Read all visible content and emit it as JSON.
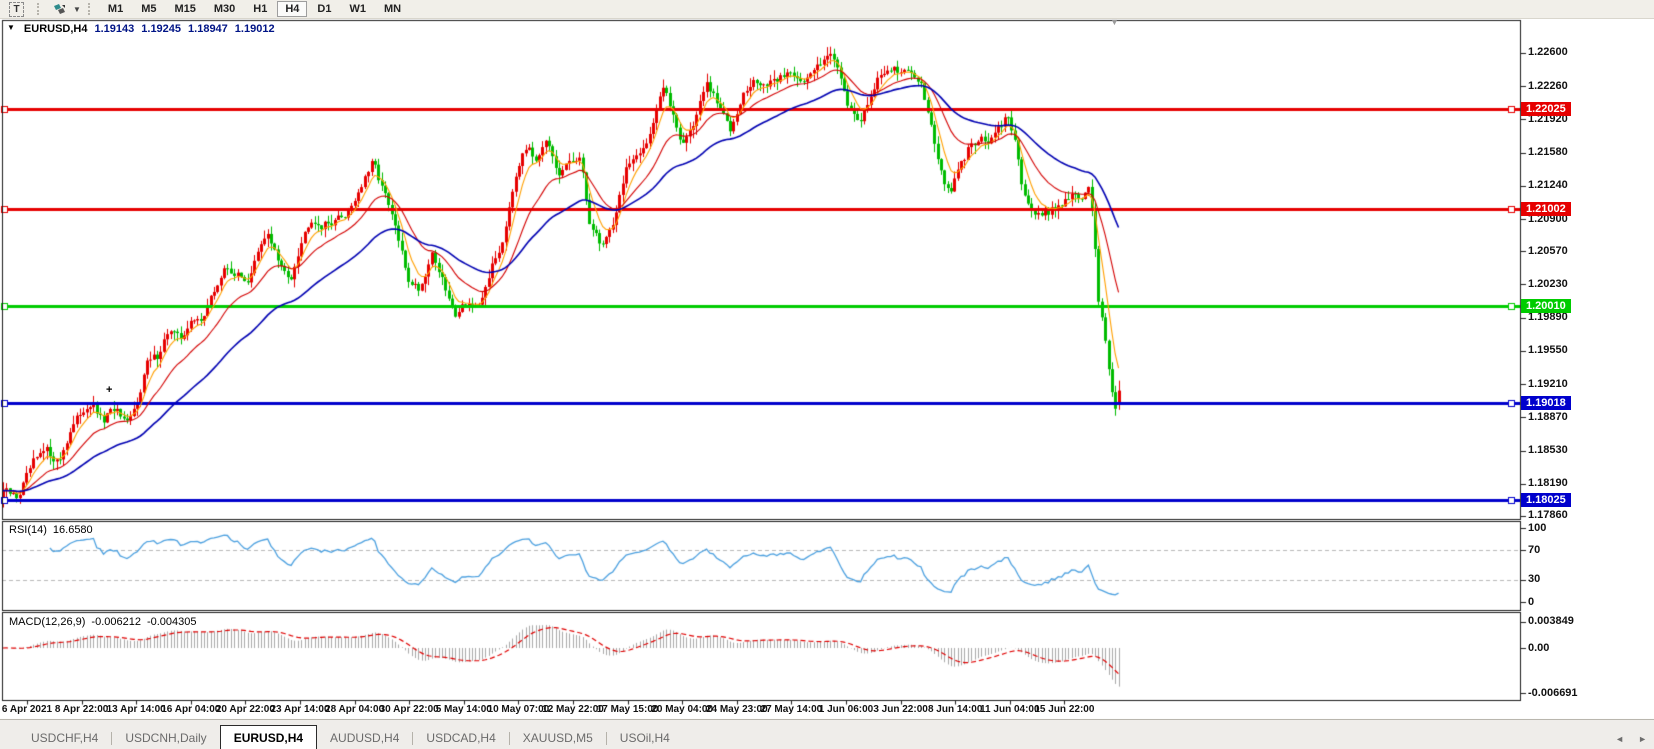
{
  "toolbar": {
    "text_tool_label": "T",
    "dropdown_caret": "▼",
    "timeframes": [
      "M1",
      "M5",
      "M15",
      "M30",
      "H1",
      "H4",
      "D1",
      "W1",
      "MN"
    ],
    "active_timeframe": "H4"
  },
  "title": {
    "dropdown_icon": "▼",
    "symbol": "EURUSD,H4",
    "open": "1.19143",
    "high": "1.19245",
    "low": "1.18947",
    "close": "1.19012"
  },
  "y_axis": {
    "labels": [
      "1.22600",
      "1.22260",
      "1.21920",
      "1.21580",
      "1.21240",
      "1.20900",
      "1.20570",
      "1.20230",
      "1.19890",
      "1.19550",
      "1.19210",
      "1.18870",
      "1.18530",
      "1.18190",
      "1.17860"
    ]
  },
  "x_axis": {
    "labels": [
      "6 Apr 2021",
      "8 Apr 22:00",
      "13 Apr 14:00",
      "16 Apr 04:00",
      "20 Apr 22:00",
      "23 Apr 14:00",
      "28 Apr 04:00",
      "30 Apr 22:00",
      "5 May 14:00",
      "10 May 07:00",
      "12 May 22:00",
      "17 May 15:00",
      "20 May 04:00",
      "24 May 23:00",
      "27 May 14:00",
      "1 Jun 06:00",
      "3 Jun 22:00",
      "8 Jun 14:00",
      "11 Jun 04:00",
      "15 Jun 22:00"
    ]
  },
  "h_lines": [
    {
      "label": "1.22025",
      "price": 1.22025,
      "color": "#e60000",
      "thickness": 3
    },
    {
      "label": "1.21002",
      "price": 1.21002,
      "color": "#e60000",
      "thickness": 3
    },
    {
      "label": "1.20010",
      "price": 1.2001,
      "color": "#00cc00",
      "thickness": 3
    },
    {
      "label": "1.19018",
      "price": 1.19018,
      "color": "#0000cc",
      "thickness": 3
    },
    {
      "label": "1.18025",
      "price": 1.18025,
      "color": "#0000cc",
      "thickness": 3
    }
  ],
  "rsi": {
    "name": "RSI(14)",
    "value": "16.6580",
    "line_color": "#4da1e0",
    "scale": [
      {
        "label": "100",
        "value": 100
      },
      {
        "label": "70",
        "value": 70
      },
      {
        "label": "30",
        "value": 30
      },
      {
        "label": "0",
        "value": 0
      }
    ],
    "dashed_levels": [
      70,
      30
    ]
  },
  "macd": {
    "name": "MACD(12,26,9)",
    "value": "-0.006212",
    "signal_value": "-0.004305",
    "bar_color": "#a9a9a9",
    "signal_color": "#e00000",
    "scale": [
      {
        "label": "0.003849",
        "value": 0.003849
      },
      {
        "label": "0.00",
        "value": 0
      },
      {
        "label": "-0.006691",
        "value": -0.006691
      }
    ]
  },
  "tabs": {
    "items": [
      "USDCHF,H4",
      "USDCNH,Daily",
      "EURUSD,H4",
      "AUDUSD,H4",
      "USDCAD,H4",
      "XAUUSD,M5",
      "USOil,H4"
    ],
    "active_index": 2,
    "scroll_left": "◄",
    "scroll_right": "►"
  },
  "markers": {
    "shift_marker": "▼",
    "cross_marker": "+"
  },
  "chart_data": {
    "type": "candlestick",
    "symbol": "EURUSD",
    "timeframe": "H4",
    "bars": 334,
    "last_ohlc": {
      "open": 1.19143,
      "high": 1.19245,
      "low": 1.18947,
      "close": 1.19012
    },
    "up_color": "#e60000",
    "down_color": "#00bb00",
    "y_axis_top_price": 1.226,
    "y_axis_step": 0.0034,
    "price_path": [
      [
        3,
        1.1812
      ],
      [
        18,
        1.1805
      ],
      [
        32,
        1.184
      ],
      [
        46,
        1.1854
      ],
      [
        58,
        1.184
      ],
      [
        70,
        1.1872
      ],
      [
        81,
        1.1893
      ],
      [
        92,
        1.1901
      ],
      [
        102,
        1.1882
      ],
      [
        114,
        1.1897
      ],
      [
        126,
        1.1878
      ],
      [
        136,
        1.1899
      ],
      [
        147,
        1.1943
      ],
      [
        158,
        1.1951
      ],
      [
        168,
        1.1976
      ],
      [
        180,
        1.1968
      ],
      [
        190,
        1.1983
      ],
      [
        202,
        1.1989
      ],
      [
        214,
        1.2016
      ],
      [
        226,
        1.2041
      ],
      [
        238,
        1.2031
      ],
      [
        248,
        1.2027
      ],
      [
        258,
        1.2056
      ],
      [
        268,
        1.2076
      ],
      [
        280,
        1.2041
      ],
      [
        290,
        1.2028
      ],
      [
        300,
        1.2063
      ],
      [
        310,
        1.2091
      ],
      [
        322,
        1.2082
      ],
      [
        334,
        1.2089
      ],
      [
        344,
        1.2093
      ],
      [
        354,
        1.2109
      ],
      [
        364,
        1.2129
      ],
      [
        373,
        1.2149
      ],
      [
        383,
        1.2119
      ],
      [
        394,
        1.2086
      ],
      [
        408,
        1.2028
      ],
      [
        420,
        1.2018
      ],
      [
        432,
        1.2056
      ],
      [
        444,
        1.2021
      ],
      [
        454,
        1.1992
      ],
      [
        466,
        1.2006
      ],
      [
        478,
        1.1996
      ],
      [
        490,
        1.2036
      ],
      [
        502,
        1.2066
      ],
      [
        513,
        1.2126
      ],
      [
        524,
        1.2166
      ],
      [
        535,
        1.2151
      ],
      [
        546,
        1.2173
      ],
      [
        558,
        1.2131
      ],
      [
        568,
        1.2149
      ],
      [
        580,
        1.2151
      ],
      [
        590,
        1.2083
      ],
      [
        602,
        1.2063
      ],
      [
        614,
        1.2089
      ],
      [
        626,
        1.2143
      ],
      [
        638,
        1.2153
      ],
      [
        650,
        1.2179
      ],
      [
        662,
        1.2226
      ],
      [
        672,
        1.2201
      ],
      [
        682,
        1.2166
      ],
      [
        694,
        1.2189
      ],
      [
        706,
        1.2229
      ],
      [
        718,
        1.2206
      ],
      [
        730,
        1.2183
      ],
      [
        742,
        1.2216
      ],
      [
        755,
        1.2231
      ],
      [
        768,
        1.2226
      ],
      [
        780,
        1.2236
      ],
      [
        792,
        1.2241
      ],
      [
        805,
        1.2229
      ],
      [
        818,
        1.2249
      ],
      [
        828,
        1.2261
      ],
      [
        838,
        1.2246
      ],
      [
        848,
        1.2206
      ],
      [
        858,
        1.2186
      ],
      [
        868,
        1.2211
      ],
      [
        878,
        1.2233
      ],
      [
        890,
        1.2246
      ],
      [
        902,
        1.2239
      ],
      [
        912,
        1.2241
      ],
      [
        922,
        1.2226
      ],
      [
        932,
        1.2181
      ],
      [
        942,
        1.2131
      ],
      [
        950,
        1.2117
      ],
      [
        958,
        1.2139
      ],
      [
        968,
        1.2161
      ],
      [
        978,
        1.2173
      ],
      [
        988,
        1.2169
      ],
      [
        998,
        1.2181
      ],
      [
        1006,
        1.2196
      ],
      [
        1014,
        1.2173
      ],
      [
        1022,
        1.2126
      ],
      [
        1030,
        1.2101
      ],
      [
        1040,
        1.2093
      ],
      [
        1050,
        1.2099
      ],
      [
        1058,
        1.2103
      ],
      [
        1066,
        1.2111
      ],
      [
        1074,
        1.2116
      ],
      [
        1082,
        1.2109
      ],
      [
        1090,
        1.2123
      ],
      [
        1095,
        1.2061
      ],
      [
        1099,
        1.2
      ],
      [
        1104,
        1.1976
      ],
      [
        1108,
        1.1943
      ],
      [
        1112,
        1.1913
      ],
      [
        1115,
        1.1896
      ],
      [
        1118,
        1.1901
      ]
    ],
    "moving_averages": [
      {
        "name": "fast-ma",
        "type": "ema",
        "period": 6,
        "color": "#ffa000",
        "width": 1.1
      },
      {
        "name": "mid-ma",
        "type": "ema",
        "period": 18,
        "color": "#d40000",
        "width": 1.1
      },
      {
        "name": "slow-ma",
        "type": "ema",
        "period": 45,
        "color": "#0000b2",
        "width": 1.6
      }
    ],
    "indicators": {
      "rsi_period": 14,
      "macd_fast": 12,
      "macd_slow": 26,
      "macd_signal": 9
    }
  }
}
